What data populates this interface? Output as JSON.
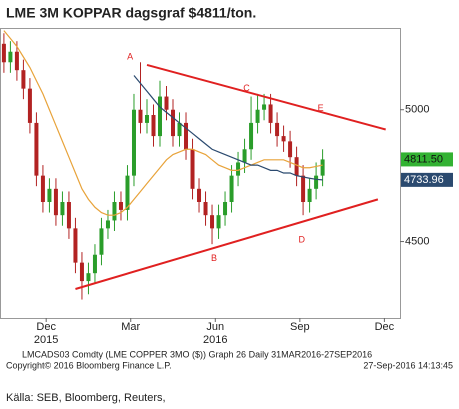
{
  "chart_data": {
    "type": "candlestick",
    "title": "LME 3M KOPPAR dagsgraf $4811/ton.",
    "ohlc": [
      [
        5250,
        5290,
        5140,
        5180
      ],
      [
        5180,
        5260,
        5140,
        5220
      ],
      [
        5220,
        5260,
        5110,
        5150
      ],
      [
        5150,
        5190,
        5040,
        5080
      ],
      [
        5080,
        5120,
        4910,
        4950
      ],
      [
        4950,
        4990,
        4710,
        4750
      ],
      [
        4750,
        4790,
        4610,
        4650
      ],
      [
        4650,
        4740,
        4610,
        4700
      ],
      [
        4700,
        4740,
        4560,
        4600
      ],
      [
        4600,
        4690,
        4560,
        4650
      ],
      [
        4650,
        4690,
        4510,
        4550
      ],
      [
        4550,
        4590,
        4380,
        4420
      ],
      [
        4420,
        4460,
        4280,
        4350
      ],
      [
        4350,
        4420,
        4300,
        4380
      ],
      [
        4380,
        4490,
        4340,
        4450
      ],
      [
        4450,
        4590,
        4410,
        4550
      ],
      [
        4550,
        4620,
        4510,
        4580
      ],
      [
        4580,
        4690,
        4540,
        4650
      ],
      [
        4650,
        4690,
        4580,
        4620
      ],
      [
        4620,
        4790,
        4580,
        4750
      ],
      [
        4750,
        5060,
        4710,
        5000
      ],
      [
        5000,
        5180,
        4910,
        4950
      ],
      [
        4950,
        5040,
        4910,
        4980
      ],
      [
        4980,
        5020,
        4860,
        4900
      ],
      [
        4900,
        5110,
        4860,
        5050
      ],
      [
        5050,
        5090,
        4960,
        5000
      ],
      [
        5000,
        5040,
        4860,
        4900
      ],
      [
        4900,
        4990,
        4860,
        4950
      ],
      [
        4950,
        4990,
        4810,
        4850
      ],
      [
        4850,
        4890,
        4660,
        4700
      ],
      [
        4700,
        4740,
        4610,
        4650
      ],
      [
        4650,
        4690,
        4560,
        4600
      ],
      [
        4600,
        4640,
        4490,
        4550
      ],
      [
        4550,
        4640,
        4510,
        4600
      ],
      [
        4600,
        4690,
        4560,
        4650
      ],
      [
        4650,
        4790,
        4610,
        4750
      ],
      [
        4750,
        4840,
        4710,
        4800
      ],
      [
        4800,
        4890,
        4760,
        4850
      ],
      [
        4850,
        5050,
        4810,
        4950
      ],
      [
        4950,
        5060,
        4910,
        5000
      ],
      [
        5000,
        5060,
        4960,
        5020
      ],
      [
        5020,
        5060,
        4910,
        4950
      ],
      [
        4950,
        4990,
        4860,
        4900
      ],
      [
        4900,
        4940,
        4840,
        4880
      ],
      [
        4880,
        4920,
        4780,
        4820
      ],
      [
        4820,
        4860,
        4710,
        4750
      ],
      [
        4750,
        4790,
        4600,
        4650
      ],
      [
        4650,
        4740,
        4610,
        4700
      ],
      [
        4700,
        4800,
        4660,
        4750
      ],
      [
        4750,
        4850,
        4710,
        4811.5
      ]
    ],
    "up_color": "#2a9d2a",
    "down_color": "#b22222",
    "last_label": "4811.50",
    "last_label_color": "#33b233",
    "series": [
      {
        "color": "#e8a33a",
        "values": [
          5300,
          5270,
          5240,
          5200,
          5160,
          5110,
          5060,
          5000,
          4940,
          4880,
          4820,
          4760,
          4700,
          4660,
          4630,
          4610,
          4600,
          4600,
          4610,
          4630,
          4660,
          4690,
          4720,
          4750,
          4780,
          4810,
          4830,
          4840,
          4850,
          4850,
          4840,
          4830,
          4810,
          4790,
          4780,
          4770,
          4770,
          4780,
          4790,
          4800,
          4810,
          4810,
          4810,
          4810,
          4800,
          4790,
          4780,
          4780,
          4785,
          4790
        ]
      },
      {
        "color": "#2b4a6f",
        "last_label": "4733.96",
        "values": [
          null,
          null,
          null,
          null,
          null,
          null,
          null,
          null,
          null,
          null,
          null,
          null,
          null,
          null,
          null,
          null,
          null,
          null,
          null,
          null,
          5130,
          5100,
          5070,
          5040,
          5010,
          4990,
          4970,
          4950,
          4930,
          4910,
          4890,
          4870,
          4850,
          4840,
          4830,
          4820,
          4810,
          4800,
          4790,
          4790,
          4780,
          4770,
          4770,
          4760,
          4760,
          4750,
          4745,
          4740,
          4736,
          4733.96
        ]
      }
    ],
    "trendlines": [
      {
        "color": "#e02020",
        "x": [
          11,
          57.5
        ],
        "y": [
          4320,
          4660
        ]
      },
      {
        "color": "#e02020",
        "x": [
          22,
          58.7
        ],
        "y": [
          5170,
          4925
        ]
      }
    ],
    "annotations": [
      {
        "text": "A",
        "x": 19.4,
        "y": 5200
      },
      {
        "text": "B",
        "x": 32.3,
        "y": 4435
      },
      {
        "text": "C",
        "x": 37.3,
        "y": 5080
      },
      {
        "text": "D",
        "x": 45.8,
        "y": 4505
      },
      {
        "text": "E",
        "x": 48.7,
        "y": 5005
      }
    ],
    "xlim": [
      -0.6,
      60.9
    ],
    "xticks": [
      {
        "value": 6.5,
        "label": "Dec",
        "year": "2015"
      },
      {
        "value": 19.5,
        "label": "Mar"
      },
      {
        "value": 32.5,
        "label": "Jun",
        "year": "2016"
      },
      {
        "value": 45.5,
        "label": "Sep"
      },
      {
        "value": 58.5,
        "label": "Dec"
      }
    ],
    "ylim": [
      4210,
      5310
    ],
    "yticks": [
      4500,
      5000
    ],
    "footer": [
      "LMCADS03 Comdty (LME COPPER    3MO ($)) Graph 26  Daily 31MAR2016-27SEP2016",
      "Copyright© 2016 Bloomberg Finance L.P.",
      "27-Sep-2016 14:13:45"
    ],
    "source": "Källa: SEB, Bloomberg, Reuters,"
  }
}
